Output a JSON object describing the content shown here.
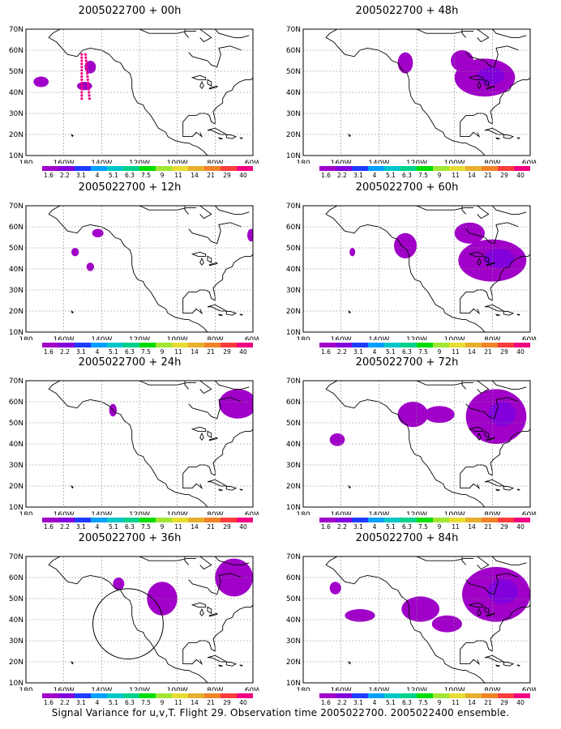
{
  "map": {
    "lat_labels": [
      "70N",
      "60N",
      "50N",
      "40N",
      "30N",
      "20N",
      "10N"
    ],
    "lon_labels": [
      "180",
      "160W",
      "140W",
      "120W",
      "100W",
      "80W",
      "60W"
    ],
    "lon_range_deg": [
      -180,
      -60
    ],
    "lat_range_deg": [
      10,
      70
    ]
  },
  "colorbar": {
    "labels": [
      "1.6",
      "2.2",
      "3.1",
      "4",
      "5.1",
      "6.3",
      "7.5",
      "9",
      "11",
      "14",
      "21",
      "29",
      "40"
    ],
    "colors": [
      "#a000c8",
      "#8200dc",
      "#1e3cff",
      "#00a0ff",
      "#00c8c8",
      "#00d28c",
      "#00dc00",
      "#a0e632",
      "#e6dc32",
      "#e6af2d",
      "#f08228",
      "#fa3c3c",
      "#f00082"
    ]
  },
  "panels": [
    {
      "id": "p00",
      "title": "2005022700 + 00h",
      "col": 0,
      "row": 0,
      "blobs": [
        [
          -172,
          45,
          4,
          2.5
        ],
        [
          -146,
          52,
          3,
          3
        ],
        [
          -149,
          43,
          4,
          2
        ]
      ],
      "circle": null
    },
    {
      "id": "p48",
      "title": "2005022700 + 48h",
      "col": 1,
      "row": 0,
      "blobs": [
        [
          -126,
          54,
          4,
          5
        ],
        [
          -84,
          47,
          16,
          9
        ],
        [
          -96,
          55,
          6,
          5
        ]
      ],
      "circle": null
    },
    {
      "id": "p12",
      "title": "2005022700 + 12h",
      "col": 0,
      "row": 1,
      "blobs": [
        [
          -142,
          57,
          3,
          2
        ],
        [
          -154,
          48,
          2,
          2
        ],
        [
          -146,
          41,
          2,
          2
        ],
        [
          -61,
          56,
          2,
          3
        ]
      ],
      "circle": null
    },
    {
      "id": "p60",
      "title": "2005022700 + 60h",
      "col": 1,
      "row": 1,
      "blobs": [
        [
          -126,
          51,
          6,
          6
        ],
        [
          -80,
          44,
          18,
          10
        ],
        [
          -92,
          57,
          8,
          5
        ],
        [
          -154,
          48,
          1.5,
          2
        ]
      ],
      "circle": null
    },
    {
      "id": "p24",
      "title": "2005022700 + 24h",
      "col": 0,
      "row": 2,
      "blobs": [
        [
          -134,
          56,
          2,
          3
        ],
        [
          -68,
          59,
          10,
          7
        ]
      ],
      "circle": null
    },
    {
      "id": "p72",
      "title": "2005022700 + 72h",
      "col": 1,
      "row": 2,
      "blobs": [
        [
          -162,
          42,
          4,
          3
        ],
        [
          -122,
          54,
          8,
          6
        ],
        [
          -78,
          53,
          16,
          13
        ],
        [
          -108,
          54,
          8,
          4
        ]
      ],
      "circle": null
    },
    {
      "id": "p36",
      "title": "2005022700 + 36h",
      "col": 0,
      "row": 3,
      "blobs": [
        [
          -108,
          50,
          8,
          8
        ],
        [
          -70,
          60,
          10,
          9
        ],
        [
          -131,
          57,
          3,
          3
        ]
      ],
      "circle": [
        -126,
        38,
        6
      ]
    },
    {
      "id": "p84",
      "title": "2005022700 + 84h",
      "col": 1,
      "row": 3,
      "blobs": [
        [
          -163,
          55,
          3,
          3
        ],
        [
          -150,
          42,
          8,
          3
        ],
        [
          -118,
          45,
          10,
          6
        ],
        [
          -78,
          52,
          18,
          13
        ],
        [
          -104,
          38,
          8,
          4
        ]
      ],
      "circle": null
    }
  ],
  "caption": "Signal Variance for u,v,T. Flight 29. Observation time 2005022700. 2005022400 ensemble."
}
